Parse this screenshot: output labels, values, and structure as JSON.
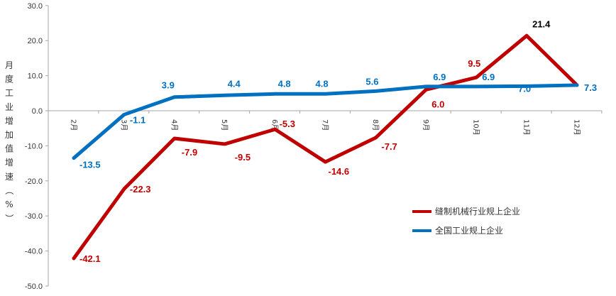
{
  "chart_data": {
    "type": "line",
    "title": "",
    "xlabel": "",
    "ylabel": "月度工业增加值增速（%）",
    "ylim": [
      -50,
      30
    ],
    "yticks": [
      "30.0",
      "20.0",
      "10.0",
      "0.0",
      "-10.0",
      "-20.0",
      "-30.0",
      "-40.0",
      "-50.0"
    ],
    "ytick_values": [
      30,
      20,
      10,
      0,
      -10,
      -20,
      -30,
      -40,
      -50
    ],
    "categories": [
      "2月",
      "3月",
      "4月",
      "5月",
      "6月",
      "7月",
      "8月",
      "9月",
      "10月",
      "11月",
      "12月"
    ],
    "series": [
      {
        "name": "缝制机械行业规上企业",
        "color": "#C00000",
        "values": [
          -42.1,
          -22.3,
          -7.9,
          -9.5,
          -5.3,
          -14.6,
          -7.7,
          6.0,
          9.5,
          21.4,
          7.3
        ],
        "labels": [
          "-42.1",
          "-22.3",
          "-7.9",
          "-9.5",
          "-5.3",
          "-14.6",
          "-7.7",
          "6.0",
          "9.5",
          "21.4",
          ""
        ],
        "label_colors": [
          "#C00000",
          "#C00000",
          "#C00000",
          "#C00000",
          "#C00000",
          "#C00000",
          "#C00000",
          "#C00000",
          "#C00000",
          "#000000",
          "#C00000"
        ]
      },
      {
        "name": "全国工业规上企业",
        "color": "#0070C0",
        "values": [
          -13.5,
          -1.1,
          3.9,
          4.4,
          4.8,
          4.8,
          5.6,
          6.9,
          6.9,
          7.0,
          7.3
        ],
        "labels": [
          "-13.5",
          "-1.1",
          "3.9",
          "4.4",
          "4.8",
          "4.8",
          "5.6",
          "6.9",
          "6.9",
          "7.0",
          "7.3"
        ],
        "label_colors": [
          "#0070C0",
          "#0070C0",
          "#0070C0",
          "#0070C0",
          "#0070C0",
          "#0070C0",
          "#0070C0",
          "#0070C0",
          "#0070C0",
          "#0070C0",
          "#0070C0"
        ]
      }
    ],
    "legend_position": "bottom-right",
    "grid": false
  }
}
